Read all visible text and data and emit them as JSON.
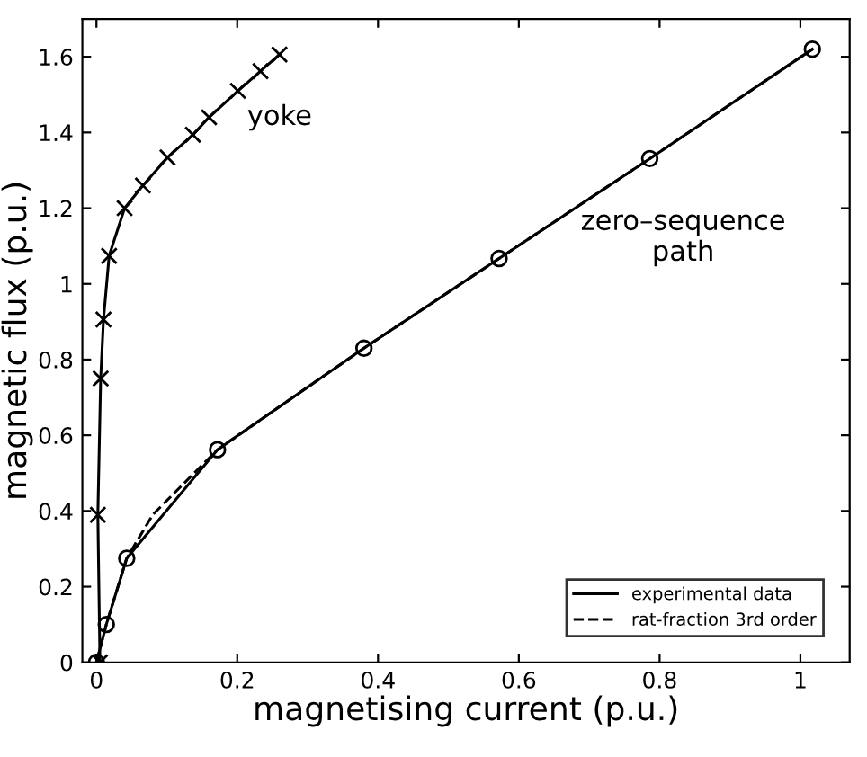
{
  "chart_data": {
    "type": "line",
    "xlabel": "magnetising current (p.u.)",
    "ylabel": "magnetic flux (p.u.)",
    "xlim": [
      -0.02,
      1.07
    ],
    "ylim": [
      0,
      1.7
    ],
    "xticks": [
      0,
      0.2,
      0.4,
      0.6,
      0.8,
      1
    ],
    "yticks": [
      0,
      0.2,
      0.4,
      0.6,
      0.8,
      1,
      1.2,
      1.4,
      1.6
    ],
    "grid": false,
    "legend": "bottom right",
    "series": [
      {
        "name": "experimental data",
        "color": "#000000",
        "marker": "cross",
        "line_style": "solid",
        "x": [
          0.005,
          0.002,
          0.006,
          0.01,
          0.018,
          0.04,
          0.066,
          0.101,
          0.137,
          0.16,
          0.201,
          0.233,
          0.26
        ],
        "values": [
          0,
          0.39,
          0.75,
          0.906,
          1.074,
          1.2,
          1.26,
          1.334,
          1.394,
          1.44,
          1.51,
          1.562,
          1.606
        ]
      },
      {
        "color": "#000000",
        "marker": "circle",
        "line_style": "solid",
        "x": [
          0,
          0.014,
          0.043,
          0.172,
          0.38,
          0.572,
          0.786,
          1.017
        ],
        "values": [
          0,
          0.1,
          0.275,
          0.562,
          0.83,
          1.067,
          1.331,
          1.62
        ]
      },
      {
        "name": "rat-fraction 3rd order",
        "color": "#000000",
        "marker": "none",
        "line_style": "dashed",
        "x": [
          0,
          0.014,
          0.043,
          0.08,
          0.172,
          0.38,
          0.572,
          0.786,
          1.017
        ],
        "values": [
          0,
          0.1,
          0.275,
          0.39,
          0.562,
          0.83,
          1.067,
          1.331,
          1.62
        ]
      }
    ],
    "annotations": [
      "yoke",
      "zero–sequence\npath"
    ]
  }
}
